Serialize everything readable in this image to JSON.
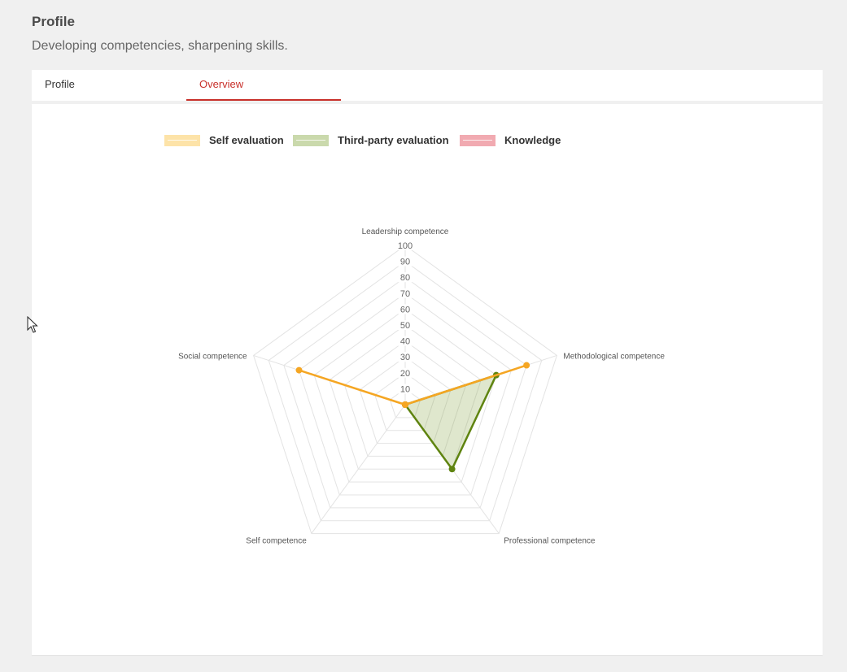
{
  "header": {
    "title": "Profile",
    "subtitle": "Developing competencies, sharpening skills."
  },
  "tabs": [
    {
      "label": "Profile",
      "active": false
    },
    {
      "label": "Overview",
      "active": true
    }
  ],
  "colors": {
    "accent": "#c8302a",
    "self": "#f5a623",
    "third_party": "#5f8410",
    "knowledge": "#e8949c",
    "grid": "#e3e3e3"
  },
  "chart_data": {
    "type": "radar",
    "axes": [
      "Leadership competence",
      "Methodological competence",
      "Professional competence",
      "Self competence",
      "Social competence"
    ],
    "axes_display": [
      "Leadership competence",
      "Methodological competence",
      "Professional competence",
      "Self competence",
      "Social competence"
    ],
    "range": [
      0,
      100
    ],
    "ticks": [
      "10",
      "20",
      "30",
      "40",
      "50",
      "60",
      "70",
      "80",
      "90",
      "100"
    ],
    "legend": [
      {
        "name": "Self evaluation",
        "color": "#f5a623"
      },
      {
        "name": "Third-party evaluation",
        "color": "#5f8410"
      },
      {
        "name": "Knowledge",
        "color": "#e8949c"
      }
    ],
    "series": [
      {
        "name": "Self evaluation",
        "values": [
          0,
          80,
          0,
          0,
          70
        ]
      },
      {
        "name": "Third-party evaluation",
        "values": [
          0,
          60,
          50,
          0,
          0
        ]
      },
      {
        "name": "Knowledge",
        "values": [
          0,
          0,
          0,
          0,
          0
        ]
      }
    ],
    "legend_position": "top"
  }
}
